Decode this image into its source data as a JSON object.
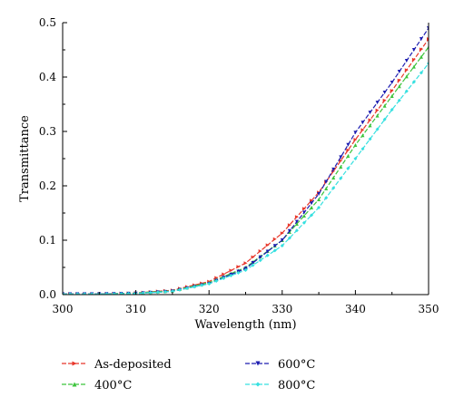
{
  "chart_data": {
    "type": "line",
    "title": "",
    "xlabel": "Wavelength (nm)",
    "ylabel": "Transmittance",
    "xlim": [
      300,
      350
    ],
    "ylim": [
      0,
      0.5
    ],
    "xticks": [
      "300",
      "310",
      "320",
      "330",
      "340",
      "350"
    ],
    "yticks": [
      "0.0",
      "0.1",
      "0.2",
      "0.3",
      "0.4",
      "0.5"
    ],
    "grid": false,
    "legend_position": "bottom",
    "series": [
      {
        "name": "As-deposited",
        "color": "#e8362a",
        "marker": "triangle-right",
        "points": [
          [
            300,
            0.001
          ],
          [
            305,
            0.001
          ],
          [
            310,
            0.003
          ],
          [
            315,
            0.008
          ],
          [
            320,
            0.024
          ],
          [
            325,
            0.058
          ],
          [
            330,
            0.113
          ],
          [
            335,
            0.188
          ],
          [
            340,
            0.285
          ],
          [
            345,
            0.375
          ],
          [
            350,
            0.47
          ]
        ]
      },
      {
        "name": "400°C",
        "color": "#3cc43c",
        "marker": "triangle-up",
        "points": [
          [
            300,
            0.001
          ],
          [
            305,
            0.001
          ],
          [
            310,
            0.003
          ],
          [
            315,
            0.007
          ],
          [
            320,
            0.022
          ],
          [
            325,
            0.05
          ],
          [
            330,
            0.1
          ],
          [
            335,
            0.175
          ],
          [
            340,
            0.275
          ],
          [
            345,
            0.365
          ],
          [
            350,
            0.455
          ]
        ]
      },
      {
        "name": "600°C",
        "color": "#1c1cb0",
        "marker": "triangle-down",
        "points": [
          [
            300,
            0.001
          ],
          [
            305,
            0.001
          ],
          [
            310,
            0.002
          ],
          [
            315,
            0.006
          ],
          [
            320,
            0.02
          ],
          [
            325,
            0.048
          ],
          [
            330,
            0.1
          ],
          [
            335,
            0.185
          ],
          [
            340,
            0.298
          ],
          [
            345,
            0.39
          ],
          [
            350,
            0.49
          ]
        ]
      },
      {
        "name": "800°C",
        "color": "#36e0e0",
        "marker": "diamond",
        "points": [
          [
            300,
            0.001
          ],
          [
            305,
            0.001
          ],
          [
            310,
            0.002
          ],
          [
            315,
            0.006
          ],
          [
            320,
            0.02
          ],
          [
            325,
            0.045
          ],
          [
            330,
            0.09
          ],
          [
            335,
            0.16
          ],
          [
            340,
            0.25
          ],
          [
            345,
            0.34
          ],
          [
            350,
            0.425
          ]
        ]
      }
    ]
  }
}
